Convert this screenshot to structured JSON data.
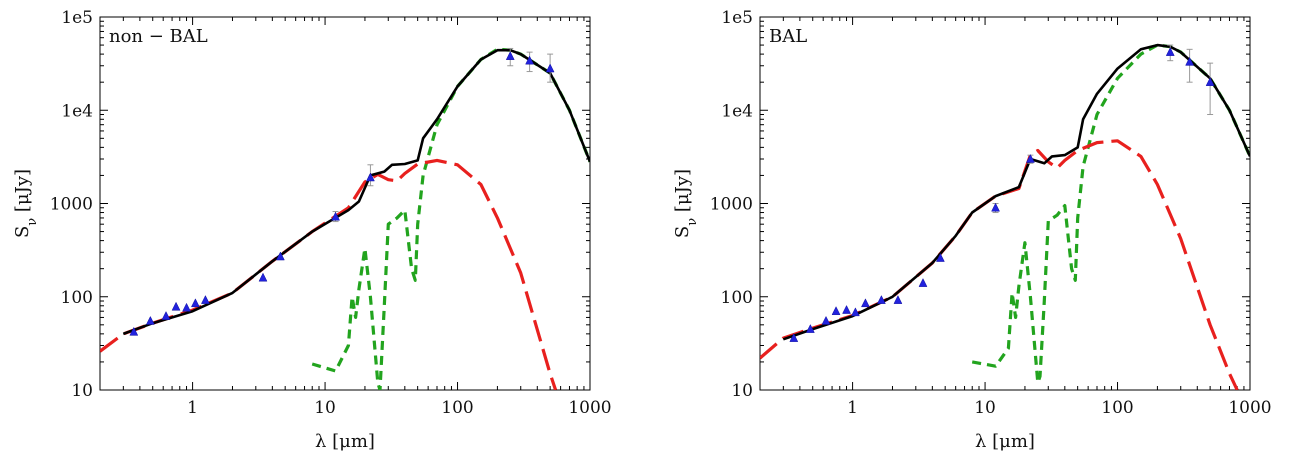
{
  "chart_data": [
    {
      "type": "line",
      "label": "non − BAL",
      "xlabel": "λ [μm]",
      "ylabel": "S_ν [μJy]",
      "xscale": "log",
      "yscale": "log",
      "xlim": [
        0.2,
        1000
      ],
      "ylim": [
        10,
        100000
      ],
      "xticks": [
        1,
        10,
        100,
        1000
      ],
      "xtick_labels": [
        "1",
        "10",
        "100",
        "1000"
      ],
      "yticks": [
        10,
        100,
        1000,
        10000,
        100000
      ],
      "ytick_labels": [
        "10",
        "100",
        "1000",
        "1e4",
        "1e5"
      ],
      "grid": false,
      "series": [
        {
          "role": "total",
          "color": "#000000",
          "style": "solid",
          "points": [
            [
              0.3,
              40
            ],
            [
              0.5,
              52
            ],
            [
              1,
              70
            ],
            [
              2,
              110
            ],
            [
              4,
              240
            ],
            [
              8,
              500
            ],
            [
              15,
              850
            ],
            [
              18,
              1050
            ],
            [
              22,
              2000
            ],
            [
              28,
              2200
            ],
            [
              32,
              2600
            ],
            [
              40,
              2650
            ],
            [
              50,
              2900
            ],
            [
              55,
              5000
            ],
            [
              70,
              8000
            ],
            [
              100,
              18000
            ],
            [
              150,
              35000
            ],
            [
              200,
              44000
            ],
            [
              250,
              44000
            ],
            [
              300,
              40000
            ],
            [
              500,
              25000
            ],
            [
              700,
              10000
            ],
            [
              1000,
              2800
            ]
          ]
        },
        {
          "role": "torus",
          "color": "#e8201e",
          "style": "dashed",
          "points": [
            [
              0.2,
              26
            ],
            [
              0.3,
              40
            ],
            [
              0.5,
              52
            ],
            [
              1,
              72
            ],
            [
              2,
              110
            ],
            [
              4,
              240
            ],
            [
              8,
              500
            ],
            [
              15,
              900
            ],
            [
              20,
              1700
            ],
            [
              25,
              2050
            ],
            [
              30,
              1800
            ],
            [
              35,
              1750
            ],
            [
              40,
              2100
            ],
            [
              50,
              2650
            ],
            [
              70,
              2900
            ],
            [
              100,
              2600
            ],
            [
              150,
              1600
            ],
            [
              200,
              700
            ],
            [
              300,
              180
            ],
            [
              500,
              15
            ],
            [
              550,
              10
            ]
          ]
        },
        {
          "role": "starburst",
          "color": "#22a41e",
          "style": "short-dashed",
          "points": [
            [
              8,
              19
            ],
            [
              12,
              16
            ],
            [
              15,
              30
            ],
            [
              16,
              100
            ],
            [
              17,
              60
            ],
            [
              18,
              120
            ],
            [
              20,
              330
            ],
            [
              22,
              100
            ],
            [
              25,
              12
            ],
            [
              26,
              10
            ],
            [
              28,
              80
            ],
            [
              30,
              600
            ],
            [
              35,
              700
            ],
            [
              40,
              850
            ],
            [
              45,
              200
            ],
            [
              48,
              150
            ],
            [
              50,
              600
            ],
            [
              55,
              2000
            ],
            [
              70,
              7000
            ],
            [
              100,
              18000
            ],
            [
              150,
              35000
            ],
            [
              200,
              45000
            ],
            [
              250,
              44000
            ],
            [
              300,
              40000
            ],
            [
              500,
              25000
            ],
            [
              700,
              10000
            ],
            [
              1000,
              2800
            ]
          ]
        }
      ],
      "observations": {
        "color": "#2222dd",
        "points": [
          [
            0.36,
            42
          ],
          [
            0.48,
            55
          ],
          [
            0.63,
            62
          ],
          [
            0.75,
            78
          ],
          [
            0.9,
            76
          ],
          [
            1.05,
            85
          ],
          [
            1.25,
            92
          ],
          [
            3.4,
            160
          ],
          [
            4.6,
            270
          ],
          [
            12,
            720
          ],
          [
            22,
            1900
          ],
          [
            250,
            38000
          ],
          [
            350,
            34000
          ],
          [
            500,
            28000
          ]
        ],
        "error_bars": [
          [
            12,
            640,
            820
          ],
          [
            22,
            1550,
            2600
          ],
          [
            250,
            30000,
            46000
          ],
          [
            350,
            26000,
            42000
          ],
          [
            500,
            20000,
            40000
          ]
        ]
      }
    },
    {
      "type": "line",
      "label": "BAL",
      "xlabel": "λ [μm]",
      "ylabel": "S_ν [μJy]",
      "xscale": "log",
      "yscale": "log",
      "xlim": [
        0.2,
        1000
      ],
      "ylim": [
        10,
        100000
      ],
      "xticks": [
        1,
        10,
        100,
        1000
      ],
      "xtick_labels": [
        "1",
        "10",
        "100",
        "1000"
      ],
      "yticks": [
        10,
        100,
        1000,
        10000,
        100000
      ],
      "ytick_labels": [
        "10",
        "100",
        "1000",
        "1e4",
        "1e5"
      ],
      "grid": false,
      "series": [
        {
          "role": "total",
          "color": "#000000",
          "style": "solid",
          "points": [
            [
              0.3,
              35
            ],
            [
              0.5,
              45
            ],
            [
              1,
              62
            ],
            [
              2,
              100
            ],
            [
              4,
              230
            ],
            [
              6,
              450
            ],
            [
              8,
              800
            ],
            [
              12,
              1200
            ],
            [
              18,
              1500
            ],
            [
              22,
              3000
            ],
            [
              28,
              2700
            ],
            [
              32,
              3200
            ],
            [
              40,
              3300
            ],
            [
              50,
              4000
            ],
            [
              55,
              8000
            ],
            [
              70,
              15000
            ],
            [
              100,
              28000
            ],
            [
              150,
              45000
            ],
            [
              200,
              50000
            ],
            [
              250,
              48000
            ],
            [
              300,
              42000
            ],
            [
              500,
              22000
            ],
            [
              700,
              10000
            ],
            [
              1000,
              3200
            ]
          ]
        },
        {
          "role": "torus",
          "color": "#e8201e",
          "style": "dashed",
          "points": [
            [
              0.2,
              22
            ],
            [
              0.3,
              36
            ],
            [
              0.5,
              46
            ],
            [
              1,
              63
            ],
            [
              2,
              100
            ],
            [
              4,
              230
            ],
            [
              6,
              450
            ],
            [
              8,
              800
            ],
            [
              12,
              1200
            ],
            [
              18,
              1450
            ],
            [
              22,
              3300
            ],
            [
              25,
              3700
            ],
            [
              30,
              2800
            ],
            [
              35,
              2400
            ],
            [
              40,
              2900
            ],
            [
              50,
              3700
            ],
            [
              70,
              4500
            ],
            [
              100,
              4700
            ],
            [
              150,
              3200
            ],
            [
              200,
              1600
            ],
            [
              300,
              420
            ],
            [
              500,
              50
            ],
            [
              700,
              15
            ],
            [
              800,
              10
            ]
          ]
        },
        {
          "role": "starburst",
          "color": "#22a41e",
          "style": "short-dashed",
          "points": [
            [
              8,
              20
            ],
            [
              12,
              18
            ],
            [
              15,
              28
            ],
            [
              16,
              110
            ],
            [
              17,
              60
            ],
            [
              18,
              130
            ],
            [
              20,
              380
            ],
            [
              22,
              100
            ],
            [
              25,
              12
            ],
            [
              26,
              14
            ],
            [
              28,
              90
            ],
            [
              30,
              650
            ],
            [
              35,
              750
            ],
            [
              40,
              950
            ],
            [
              45,
              200
            ],
            [
              48,
              150
            ],
            [
              50,
              700
            ],
            [
              55,
              2500
            ],
            [
              70,
              9000
            ],
            [
              100,
              22000
            ],
            [
              150,
              40000
            ],
            [
              200,
              50000
            ],
            [
              250,
              48000
            ],
            [
              300,
              42000
            ],
            [
              500,
              22000
            ],
            [
              700,
              10000
            ],
            [
              1000,
              3200
            ]
          ]
        }
      ],
      "observations": {
        "color": "#2222dd",
        "points": [
          [
            0.36,
            36
          ],
          [
            0.48,
            45
          ],
          [
            0.63,
            55
          ],
          [
            0.75,
            70
          ],
          [
            0.9,
            72
          ],
          [
            1.05,
            68
          ],
          [
            1.25,
            85
          ],
          [
            1.65,
            92
          ],
          [
            2.2,
            92
          ],
          [
            3.4,
            140
          ],
          [
            4.6,
            260
          ],
          [
            12,
            900
          ],
          [
            22,
            3000
          ],
          [
            250,
            42000
          ],
          [
            350,
            33000
          ],
          [
            500,
            20000
          ]
        ],
        "error_bars": [
          [
            12,
            800,
            1000
          ],
          [
            22,
            2700,
            3300
          ],
          [
            250,
            34000,
            50000
          ],
          [
            350,
            20000,
            45000
          ],
          [
            500,
            9000,
            32000
          ]
        ]
      }
    }
  ]
}
